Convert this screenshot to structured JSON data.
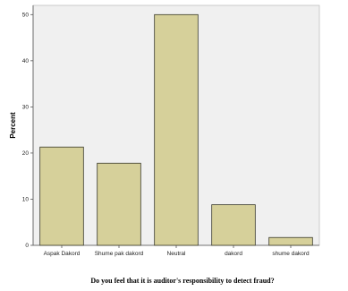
{
  "chart_data": {
    "type": "bar",
    "categories": [
      "Aspak Dakord",
      "Shume pak dakord",
      "Neutral",
      "dakord",
      "shume dakord"
    ],
    "values": [
      21.3,
      17.8,
      50.0,
      8.8,
      1.7
    ],
    "title": "",
    "xlabel": "Do you feel that it is auditor's responsibility to detect fraud?",
    "ylabel": "Percent",
    "ylim": [
      0,
      52
    ],
    "yticks": [
      0,
      10,
      20,
      30,
      40,
      50
    ],
    "grid": false,
    "colors": {
      "bar_fill": "#d6d09a",
      "bar_stroke": "#3a3a2a",
      "plot_background": "#f0f0f0",
      "axis": "#555555"
    }
  }
}
